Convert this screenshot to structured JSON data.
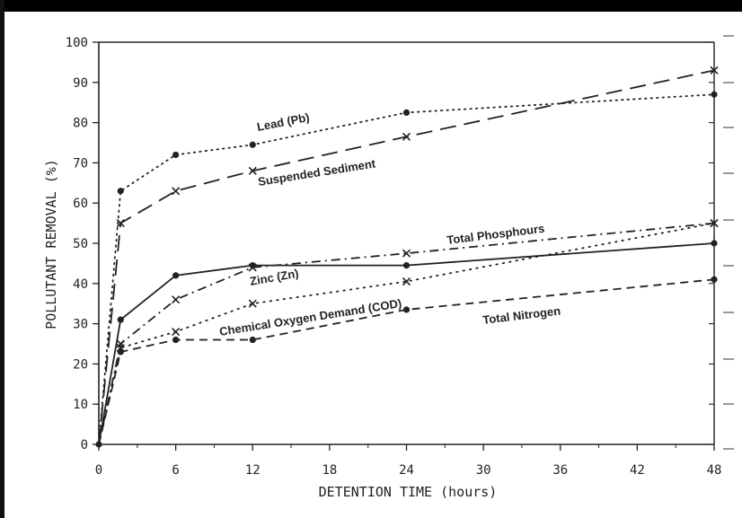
{
  "chart_data": {
    "type": "line",
    "title": "",
    "xlabel": "DETENTION TIME (hours)",
    "ylabel": "POLLUTANT REMOVAL (%)",
    "xlim": [
      0,
      48
    ],
    "ylim": [
      0,
      100
    ],
    "x_ticks": [
      "0",
      "6",
      "12",
      "18",
      "24",
      "30",
      "36",
      "42",
      "48"
    ],
    "y_ticks": [
      "0",
      "10",
      "20",
      "30",
      "40",
      "50",
      "60",
      "70",
      "80",
      "90",
      "100"
    ],
    "grid": false,
    "series": [
      {
        "name": "Lead (Pb)",
        "line": "dotted",
        "marker": "dot",
        "x": [
          0,
          1.7,
          6,
          12,
          24,
          48
        ],
        "y": [
          0,
          63,
          72,
          74.5,
          82.5,
          87
        ]
      },
      {
        "name": "Suspended Sediment",
        "line": "dashed-long",
        "marker": "x",
        "x": [
          0,
          1.7,
          6,
          12,
          24,
          48
        ],
        "y": [
          0,
          55,
          63,
          68,
          76.5,
          93
        ]
      },
      {
        "name": "Total Phosphours",
        "line": "dash-dot",
        "marker": "x",
        "x": [
          0,
          1.7,
          6,
          12,
          24,
          48
        ],
        "y": [
          0,
          25,
          36,
          44,
          47.5,
          55
        ]
      },
      {
        "name": "Zinc (Zn)",
        "line": "solid",
        "marker": "dot",
        "x": [
          0,
          1.7,
          6,
          12,
          24,
          48
        ],
        "y": [
          0,
          31,
          42,
          44.5,
          44.5,
          50
        ]
      },
      {
        "name": "Chemical Oxygen Demand (COD)",
        "line": "dotted-fine",
        "marker": "x",
        "x": [
          0,
          1.7,
          6,
          12,
          24,
          48
        ],
        "y": [
          0,
          24,
          28,
          35,
          40.5,
          55
        ]
      },
      {
        "name": "Total Nitrogen",
        "line": "dashed",
        "marker": "dot",
        "x": [
          0,
          1.7,
          6,
          12,
          24,
          48
        ],
        "y": [
          0,
          23,
          26,
          26,
          33.5,
          41
        ]
      }
    ]
  }
}
